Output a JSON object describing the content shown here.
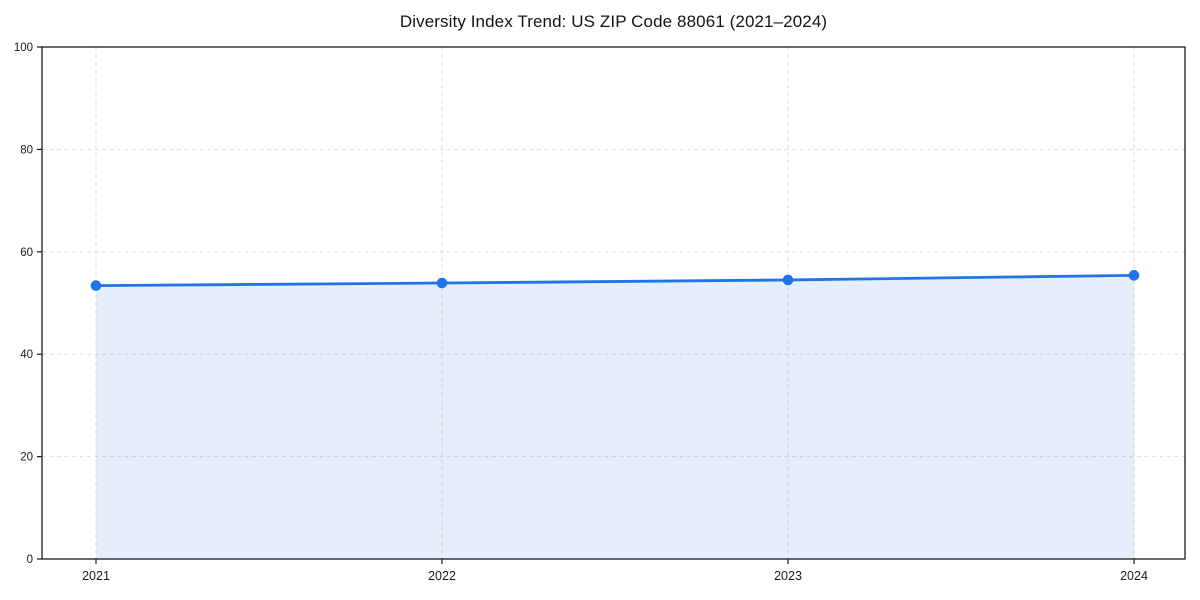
{
  "page": {
    "background_color": "#ffffff"
  },
  "chart_data": {
    "type": "line",
    "title": "Diversity Index Trend: US ZIP Code 88061 (2021–2024)",
    "x": [
      2021,
      2022,
      2023,
      2024
    ],
    "x_tick_labels": [
      "2021",
      "2022",
      "2023",
      "2024"
    ],
    "series": [
      {
        "name": "Diversity Index",
        "values": [
          53.4,
          53.9,
          54.5,
          55.4
        ]
      }
    ],
    "xlabel": "",
    "ylabel": "",
    "ylim": [
      0,
      100
    ],
    "y_ticks": [
      0,
      20,
      40,
      60,
      80,
      100
    ],
    "grid": true,
    "grid_line_style": "dashed",
    "legend": "none",
    "marker": "circle",
    "area_fill": true,
    "colors": {
      "line": "#2273e8",
      "marker": "#2273e8",
      "area_fill": "rgba(34,115,232,0.12)",
      "grid": "#dedede",
      "frame": "#1a1a1a",
      "tick_text": "#1a1a1a",
      "title_text": "#141414"
    }
  }
}
